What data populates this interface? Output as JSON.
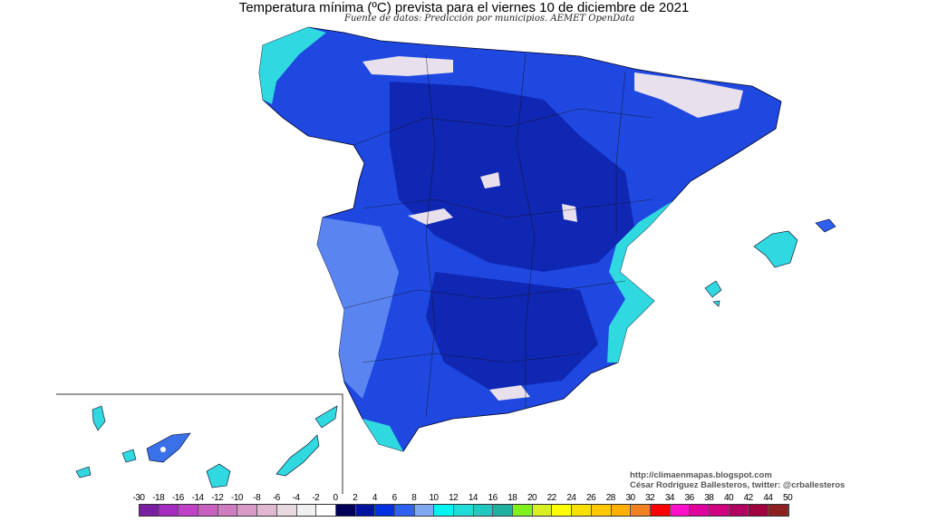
{
  "header": {
    "title": "Temperatura mínima (ºC) prevista para el viernes 10 de diciembre de 2021",
    "subtitle": "Fuente de datos: Predicción por municipios. AEMET OpenData"
  },
  "credits": {
    "url": "http://climaenmapas.blogspot.com",
    "author": "César Rodríguez Ballesteros, twitter: @crballesteros"
  },
  "legend": {
    "labels": [
      "-30",
      "-18",
      "-16",
      "-14",
      "-12",
      "-10",
      "-8",
      "-6",
      "-4",
      "-2",
      "0",
      "2",
      "4",
      "6",
      "8",
      "10",
      "12",
      "14",
      "16",
      "18",
      "20",
      "22",
      "24",
      "26",
      "28",
      "30",
      "32",
      "34",
      "36",
      "38",
      "40",
      "42",
      "44",
      "50"
    ],
    "colors": [
      "#7a1fa2",
      "#a52cc0",
      "#c040c8",
      "#c860c0",
      "#d07cc0",
      "#d898c8",
      "#e0b8d0",
      "#e8d8e0",
      "#f0f0f0",
      "#ffffff",
      "#00005a",
      "#0014a0",
      "#0030e0",
      "#3060f0",
      "#80a8f0",
      "#00f4f4",
      "#20dcd8",
      "#20c8c0",
      "#20b0a0",
      "#80f020",
      "#d8f020",
      "#ffff00",
      "#f8e000",
      "#ffc800",
      "#ffb000",
      "#f08020",
      "#ff0000",
      "#ff10c8",
      "#e000a0",
      "#d00080",
      "#b00060",
      "#a00040",
      "#8c2020"
    ]
  },
  "map_colors": {
    "land_main": "#1e48e0",
    "land_dark": "#0a1aa0",
    "land_light": "#5a84f0",
    "coast_cyan": "#30d8e0",
    "snow": "#e8e0ec"
  }
}
